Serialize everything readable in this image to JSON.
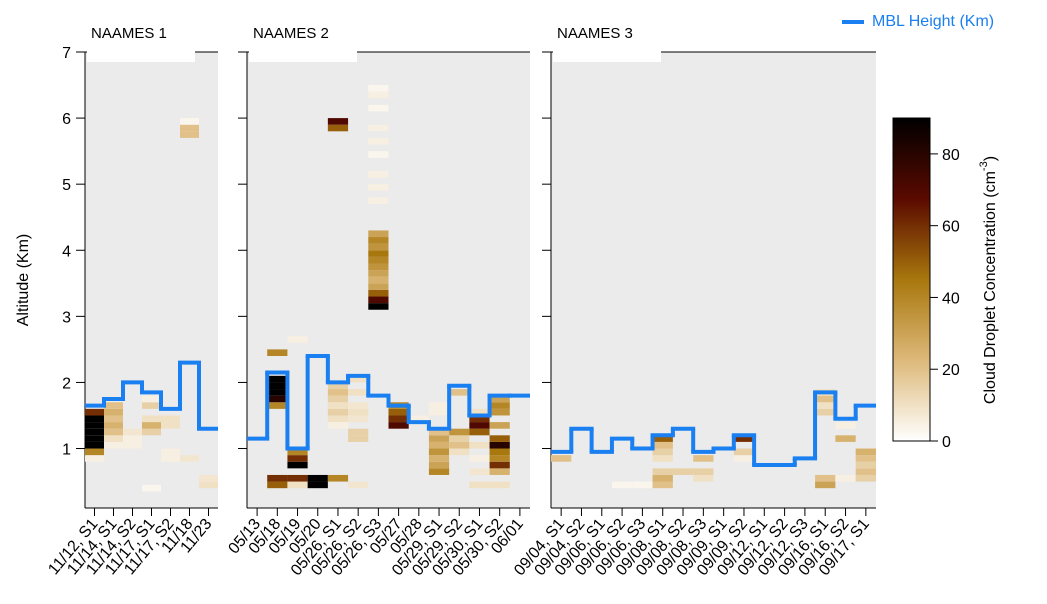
{
  "chart_data": {
    "type": "heatmap",
    "y_label": "Altitude (Km)",
    "ylim": [
      0.1,
      7
    ],
    "yticks": [
      1,
      2,
      3,
      4,
      5,
      6,
      7
    ],
    "cell_height": 0.1,
    "legend": "MBL Height  (Km)",
    "mbl_color": "#1a7ff0",
    "background": "#ebebeb",
    "colorbar": {
      "label": "Cloud Droplet Concentration  (cm",
      "label_sup": "-3",
      "label_end": ")",
      "zlim": [
        0,
        90
      ],
      "ticks": [
        0,
        20,
        40,
        60,
        80
      ],
      "colormap": [
        "#ffffff",
        "#ddb97a",
        "#a8770d",
        "#5a0a00",
        "#000000"
      ]
    },
    "panels": [
      {
        "title": "NAAMES 1",
        "categories": [
          "11/12, S1",
          "11/14, S1",
          "11/14, S2",
          "11/17, S1",
          "11/17, S2",
          "11/18",
          "11/23"
        ],
        "mbl": [
          1.65,
          1.75,
          2.0,
          1.85,
          1.6,
          2.3,
          1.3
        ],
        "columns": [
          {
            "altitudes": [
              0.8,
              0.9,
              1.0,
              1.1,
              1.2,
              1.3,
              1.4,
              1.5
            ],
            "concentrations": [
              5,
              40,
              90,
              90,
              90,
              90,
              90,
              60
            ]
          },
          {
            "altitudes": [
              1.0,
              1.1,
              1.2,
              1.3,
              1.4,
              1.5,
              1.6
            ],
            "concentrations": [
              5,
              10,
              20,
              25,
              20,
              25,
              20
            ]
          },
          {
            "altitudes": [
              1.0,
              1.1,
              1.2
            ],
            "concentrations": [
              5,
              5,
              8
            ]
          },
          {
            "altitudes": [
              0.35,
              1.2,
              1.3,
              1.4,
              1.6,
              1.7
            ],
            "concentrations": [
              3,
              15,
              25,
              10,
              15,
              5
            ]
          },
          {
            "altitudes": [
              0.8,
              0.9,
              1.3,
              1.4
            ],
            "concentrations": [
              5,
              5,
              10,
              10
            ]
          },
          {
            "altitudes": [
              0.8,
              5.7,
              5.8,
              5.9
            ],
            "concentrations": [
              8,
              20,
              20,
              3
            ]
          },
          {
            "altitudes": [
              0.4,
              0.5
            ],
            "concentrations": [
              10,
              8
            ]
          }
        ]
      },
      {
        "title": "NAAMES 2",
        "categories": [
          "05/13",
          "05/18",
          "05/19",
          "05/20",
          "05/26, S1",
          "05/26, S2",
          "05/26, S3",
          "05/27",
          "05/28",
          "05/29, S1",
          "05/29, S2",
          "05/30, S1",
          "05/30, S2",
          "06/01"
        ],
        "mbl": [
          1.15,
          2.15,
          1.0,
          2.4,
          2.0,
          2.1,
          1.8,
          1.65,
          1.4,
          1.3,
          1.95,
          1.5,
          1.8,
          1.8
        ],
        "columns": [
          {
            "altitudes": [],
            "concentrations": []
          },
          {
            "altitudes": [
              0.4,
              0.5,
              1.6,
              1.7,
              1.8,
              1.9,
              2.0,
              2.4
            ],
            "concentrations": [
              50,
              60,
              40,
              80,
              90,
              90,
              90,
              40
            ]
          },
          {
            "altitudes": [
              0.4,
              0.5,
              0.7,
              0.8,
              0.9,
              2.6
            ],
            "concentrations": [
              10,
              60,
              90,
              60,
              40,
              5
            ]
          },
          {
            "altitudes": [
              0.4,
              0.5
            ],
            "concentrations": [
              90,
              90
            ]
          },
          {
            "altitudes": [
              0.5,
              1.3,
              1.4,
              1.5,
              1.6,
              1.7,
              1.8,
              1.9,
              5.8,
              5.9
            ],
            "concentrations": [
              40,
              5,
              10,
              15,
              10,
              15,
              20,
              15,
              50,
              70
            ]
          },
          {
            "altitudes": [
              0.4,
              1.1,
              1.2,
              1.4,
              1.5,
              1.6,
              1.8,
              2.0
            ],
            "concentrations": [
              8,
              15,
              15,
              8,
              10,
              8,
              10,
              10
            ]
          },
          {
            "altitudes": [
              3.1,
              3.2,
              3.3,
              3.4,
              3.5,
              3.6,
              3.7,
              3.8,
              3.9,
              4.0,
              4.1,
              4.2,
              4.7,
              4.9,
              5.1,
              5.4,
              5.6,
              5.8,
              6.1,
              6.3,
              6.4
            ],
            "concentrations": [
              90,
              70,
              50,
              30,
              25,
              30,
              35,
              40,
              45,
              35,
              40,
              30,
              5,
              5,
              5,
              3,
              5,
              5,
              3,
              5,
              3
            ]
          },
          {
            "altitudes": [
              1.3,
              1.4,
              1.5,
              1.6
            ],
            "concentrations": [
              70,
              60,
              50,
              40
            ]
          },
          {
            "altitudes": [
              1.4
            ],
            "concentrations": [
              5
            ]
          },
          {
            "altitudes": [
              0.6,
              0.7,
              0.8,
              0.9,
              1.0,
              1.1,
              1.2,
              1.5,
              1.6
            ],
            "concentrations": [
              40,
              30,
              25,
              35,
              25,
              30,
              20,
              5,
              5
            ]
          },
          {
            "altitudes": [
              0.9,
              1.0,
              1.1,
              1.2,
              1.8
            ],
            "concentrations": [
              10,
              20,
              15,
              35,
              20
            ]
          },
          {
            "altitudes": [
              0.4,
              0.6,
              0.8,
              1.0,
              1.2,
              1.3,
              1.4,
              1.5
            ],
            "concentrations": [
              10,
              8,
              5,
              10,
              50,
              70,
              60,
              10
            ]
          },
          {
            "altitudes": [
              0.4,
              0.6,
              0.7,
              0.8,
              0.9,
              1.0,
              1.1,
              1.3,
              1.5,
              1.6,
              1.7
            ],
            "concentrations": [
              10,
              25,
              60,
              40,
              45,
              80,
              50,
              30,
              35,
              40,
              30
            ]
          },
          {
            "altitudes": [],
            "concentrations": []
          }
        ]
      },
      {
        "title": "NAAMES 3",
        "categories": [
          "09/04, S1",
          "09/04, S2",
          "09/06, S1",
          "09/06, S2",
          "09/06, S3",
          "09/08, S1",
          "09/08, S2",
          "09/08, S3",
          "09/09, S1",
          "09/09, S2",
          "09/12, S1",
          "09/12, S2",
          "09/12, S3",
          "09/16, S1",
          "09/16, S2",
          "09/17, S1"
        ],
        "mbl": [
          0.95,
          1.3,
          0.95,
          1.15,
          1.0,
          1.2,
          1.3,
          0.95,
          1.0,
          1.2,
          0.75,
          0.75,
          0.85,
          1.85,
          1.45,
          1.65
        ],
        "columns": [
          {
            "altitudes": [
              0.8
            ],
            "concentrations": [
              20
            ]
          },
          {
            "altitudes": [],
            "concentrations": []
          },
          {
            "altitudes": [],
            "concentrations": []
          },
          {
            "altitudes": [
              0.4
            ],
            "concentrations": [
              3
            ]
          },
          {
            "altitudes": [
              0.4
            ],
            "concentrations": [
              3
            ]
          },
          {
            "altitudes": [
              0.4,
              0.5,
              0.6,
              0.8,
              0.9,
              1.0,
              1.1
            ],
            "concentrations": [
              20,
              25,
              15,
              10,
              15,
              20,
              50
            ]
          },
          {
            "altitudes": [
              0.6
            ],
            "concentrations": [
              15
            ]
          },
          {
            "altitudes": [
              0.5,
              0.6,
              0.8
            ],
            "concentrations": [
              10,
              15,
              20
            ]
          },
          {
            "altitudes": [],
            "concentrations": []
          },
          {
            "altitudes": [
              0.8,
              0.9,
              1.1
            ],
            "concentrations": [
              5,
              15,
              60
            ]
          },
          {
            "altitudes": [],
            "concentrations": []
          },
          {
            "altitudes": [],
            "concentrations": []
          },
          {
            "altitudes": [],
            "concentrations": []
          },
          {
            "altitudes": [
              0.4,
              0.5,
              1.5,
              1.6,
              1.7,
              1.8
            ],
            "concentrations": [
              30,
              20,
              15,
              10,
              20,
              10
            ]
          },
          {
            "altitudes": [
              0.5,
              1.1,
              1.3
            ],
            "concentrations": [
              5,
              25,
              5
            ]
          },
          {
            "altitudes": [
              0.5,
              0.6,
              0.7,
              0.8,
              0.9
            ],
            "concentrations": [
              15,
              20,
              15,
              20,
              25
            ]
          }
        ]
      }
    ]
  }
}
